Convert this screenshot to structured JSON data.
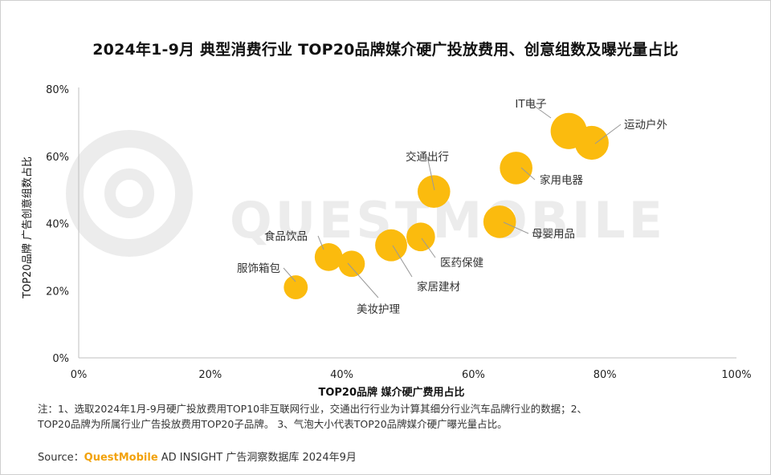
{
  "title": "2024年1-9月 典型消费行业 TOP20品牌媒介硬广投放费用、创意组数及曝光量占比",
  "watermark": "QUESTMOBILE",
  "notes": {
    "line1": "注：1、选取2024年1月-9月硬广投放费用TOP10非互联网行业，交通出行行业为计算其细分行业汽车品牌行业的数据；2、",
    "line2": "TOP20品牌为所属行业广告投放费用TOP20子品牌。 3、气泡大小代表TOP20品牌媒介硬广曝光量占比。"
  },
  "source": {
    "prefix": "Source：",
    "brand": "QuestMobile",
    "suffix": " AD INSIGHT 广告洞察数据库 2024年9月"
  },
  "colors": {
    "bubble": "#fbbb0e",
    "axis": "#bfbfbf",
    "watermark": "#ececec"
  },
  "chart_data": {
    "type": "scatter",
    "xlabel_prefix": "TOP20品牌 ",
    "xlabel": "媒介硬广费用占比",
    "ylabel": "TOP20品牌 广告创意组数占比",
    "xlim": [
      0,
      100
    ],
    "ylim": [
      0,
      80
    ],
    "xticks": [
      "0%",
      "20%",
      "40%",
      "60%",
      "80%",
      "100%"
    ],
    "yticks": [
      "0%",
      "20%",
      "40%",
      "60%",
      "80%"
    ],
    "grid": false,
    "legend": "none",
    "points": [
      {
        "label": "IT电子",
        "x": 74.5,
        "y": 67.5,
        "size": 3.2
      },
      {
        "label": "运动户外",
        "x": 78.0,
        "y": 64.0,
        "size": 2.8
      },
      {
        "label": "家用电器",
        "x": 66.5,
        "y": 56.5,
        "size": 2.6
      },
      {
        "label": "母婴用品",
        "x": 64.0,
        "y": 40.5,
        "size": 2.6
      },
      {
        "label": "交通出行",
        "x": 54.0,
        "y": 49.5,
        "size": 2.6
      },
      {
        "label": "医药保健",
        "x": 52.0,
        "y": 36.0,
        "size": 2.0
      },
      {
        "label": "家居建材",
        "x": 47.5,
        "y": 33.5,
        "size": 2.5
      },
      {
        "label": "食品饮品",
        "x": 38.0,
        "y": 30.0,
        "size": 1.9
      },
      {
        "label": "美妆护理",
        "x": 41.5,
        "y": 28.0,
        "size": 1.7
      },
      {
        "label": "服饰箱包",
        "x": 33.0,
        "y": 21.0,
        "size": 1.4
      }
    ]
  }
}
